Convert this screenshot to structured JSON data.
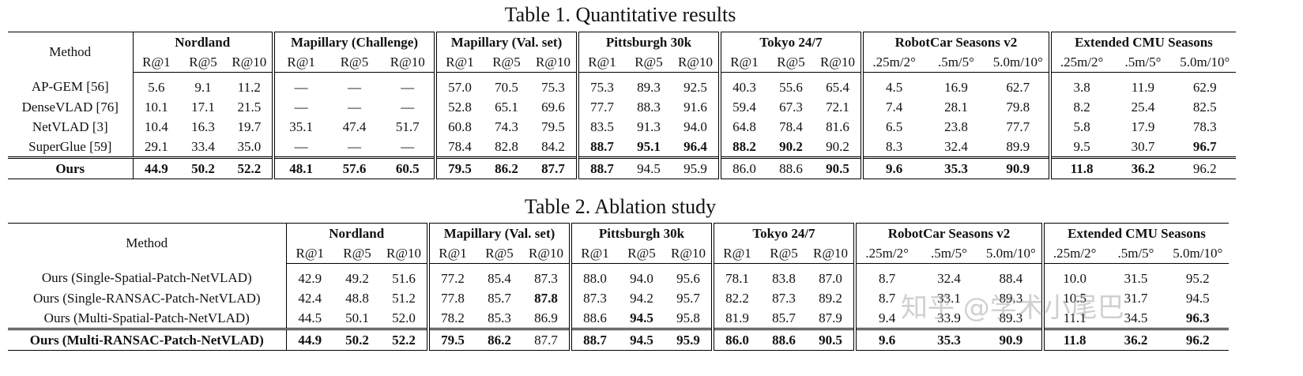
{
  "table1": {
    "title": "Table 1. Quantitative results",
    "method_header": "Method",
    "groups": [
      "Nordland",
      "Mapillary (Challenge)",
      "Mapillary (Val. set)",
      "Pittsburgh 30k",
      "Tokyo 24/7",
      "RobotCar Seasons v2",
      "Extended CMU Seasons"
    ],
    "subheaders": [
      "R@1",
      "R@5",
      "R@10",
      "R@1",
      "R@5",
      "R@10",
      "R@1",
      "R@5",
      "R@10",
      "R@1",
      "R@5",
      "R@10",
      "R@1",
      "R@5",
      "R@10",
      ".25m/2°",
      ".5m/5°",
      "5.0m/10°",
      ".25m/2°",
      ".5m/5°",
      "5.0m/10°"
    ],
    "rows": [
      {
        "method": "AP-GEM [56]",
        "method_bold": false,
        "cells": [
          "5.6",
          "9.1",
          "11.2",
          "—",
          "—",
          "—",
          "57.0",
          "70.5",
          "75.3",
          "75.3",
          "89.3",
          "92.5",
          "40.3",
          "55.6",
          "65.4",
          "4.5",
          "16.9",
          "62.7",
          "3.8",
          "11.9",
          "62.9"
        ],
        "bold": []
      },
      {
        "method": "DenseVLAD [76]",
        "method_bold": false,
        "cells": [
          "10.1",
          "17.1",
          "21.5",
          "—",
          "—",
          "—",
          "52.8",
          "65.1",
          "69.6",
          "77.7",
          "88.3",
          "91.6",
          "59.4",
          "67.3",
          "72.1",
          "7.4",
          "28.1",
          "79.8",
          "8.2",
          "25.4",
          "82.5"
        ],
        "bold": []
      },
      {
        "method": "NetVLAD [3]",
        "method_bold": false,
        "cells": [
          "10.4",
          "16.3",
          "19.7",
          "35.1",
          "47.4",
          "51.7",
          "60.8",
          "74.3",
          "79.5",
          "83.5",
          "91.3",
          "94.0",
          "64.8",
          "78.4",
          "81.6",
          "6.5",
          "23.8",
          "77.7",
          "5.8",
          "17.9",
          "78.3"
        ],
        "bold": []
      },
      {
        "method": "SuperGlue [59]",
        "method_bold": false,
        "cells": [
          "29.1",
          "33.4",
          "35.0",
          "—",
          "—",
          "—",
          "78.4",
          "82.8",
          "84.2",
          "88.7",
          "95.1",
          "96.4",
          "88.2",
          "90.2",
          "90.2",
          "8.3",
          "32.4",
          "89.9",
          "9.5",
          "30.7",
          "96.7"
        ],
        "bold": [
          9,
          10,
          11,
          12,
          13,
          20
        ]
      },
      {
        "method": "Ours",
        "method_bold": true,
        "cells": [
          "44.9",
          "50.2",
          "52.2",
          "48.1",
          "57.6",
          "60.5",
          "79.5",
          "86.2",
          "87.7",
          "88.7",
          "94.5",
          "95.9",
          "86.0",
          "88.6",
          "90.5",
          "9.6",
          "35.3",
          "90.9",
          "11.8",
          "36.2",
          "96.2"
        ],
        "bold": [
          0,
          1,
          2,
          3,
          4,
          5,
          6,
          7,
          8,
          9,
          14,
          15,
          16,
          17,
          18,
          19
        ]
      }
    ]
  },
  "table2": {
    "title": "Table 2. Ablation study",
    "method_header": "Method",
    "groups": [
      "Nordland",
      "Mapillary (Val. set)",
      "Pittsburgh 30k",
      "Tokyo 24/7",
      "RobotCar Seasons v2",
      "Extended CMU Seasons"
    ],
    "subheaders": [
      "R@1",
      "R@5",
      "R@10",
      "R@1",
      "R@5",
      "R@10",
      "R@1",
      "R@5",
      "R@10",
      "R@1",
      "R@5",
      "R@10",
      ".25m/2°",
      ".5m/5°",
      "5.0m/10°",
      ".25m/2°",
      ".5m/5°",
      "5.0m/10°"
    ],
    "rows": [
      {
        "method": "Ours (Single-Spatial-Patch-NetVLAD)",
        "method_bold": false,
        "cells": [
          "42.9",
          "49.2",
          "51.6",
          "77.2",
          "85.4",
          "87.3",
          "88.0",
          "94.0",
          "95.6",
          "78.1",
          "83.8",
          "87.0",
          "8.7",
          "32.4",
          "88.4",
          "10.0",
          "31.5",
          "95.2"
        ],
        "bold": []
      },
      {
        "method": "Ours (Single-RANSAC-Patch-NetVLAD)",
        "method_bold": false,
        "cells": [
          "42.4",
          "48.8",
          "51.2",
          "77.8",
          "85.7",
          "87.8",
          "87.3",
          "94.2",
          "95.7",
          "82.2",
          "87.3",
          "89.2",
          "8.7",
          "33.1",
          "89.3",
          "10.5",
          "31.7",
          "94.5"
        ],
        "bold": [
          5
        ]
      },
      {
        "method": "Ours (Multi-Spatial-Patch-NetVLAD)",
        "method_bold": false,
        "cells": [
          "44.5",
          "50.1",
          "52.0",
          "78.2",
          "85.3",
          "86.9",
          "88.6",
          "94.5",
          "95.8",
          "81.9",
          "85.7",
          "87.9",
          "9.4",
          "33.9",
          "89.3",
          "11.1",
          "34.5",
          "96.3"
        ],
        "bold": [
          7,
          17
        ]
      },
      {
        "method": "Ours (Multi-RANSAC-Patch-NetVLAD)",
        "method_bold": true,
        "cells": [
          "44.9",
          "50.2",
          "52.2",
          "79.5",
          "86.2",
          "87.7",
          "88.7",
          "94.5",
          "95.9",
          "86.0",
          "88.6",
          "90.5",
          "9.6",
          "35.3",
          "90.9",
          "11.8",
          "36.2",
          "96.2"
        ],
        "bold": [
          0,
          1,
          2,
          3,
          4,
          6,
          7,
          8,
          9,
          10,
          11,
          12,
          13,
          14,
          15,
          16,
          17
        ]
      }
    ]
  },
  "watermark": "知乎 @学术小尾巴"
}
